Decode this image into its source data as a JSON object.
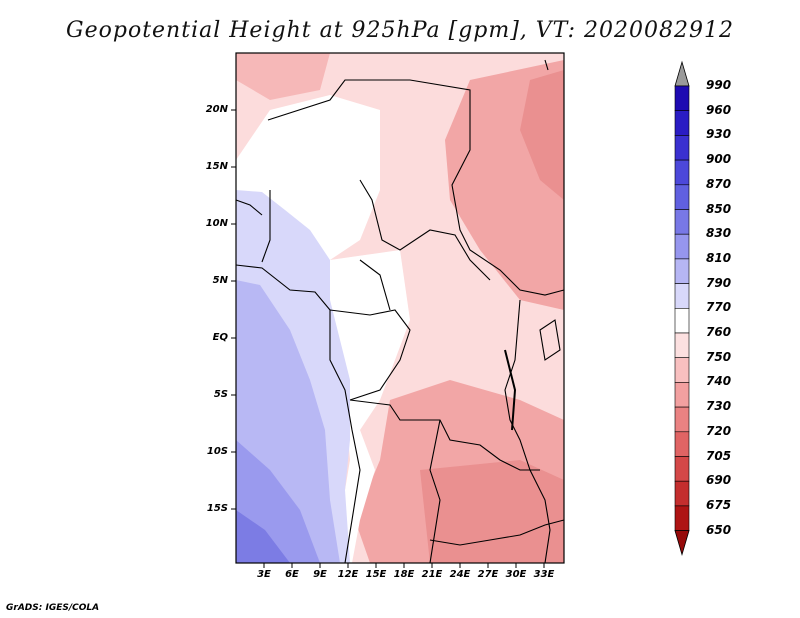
{
  "title": "Geopotential Height at 925hPa [gpm], VT: 2020082912",
  "footer": "GrADS: IGES/COLA",
  "map": {
    "lat_labels": [
      "20N",
      "15N",
      "10N",
      "5N",
      "EQ",
      "5S",
      "10S",
      "15S"
    ],
    "lon_labels": [
      "3E",
      "6E",
      "9E",
      "12E",
      "15E",
      "18E",
      "21E",
      "24E",
      "27E",
      "30E",
      "33E"
    ]
  },
  "colorbar": {
    "labels": [
      "990",
      "960",
      "930",
      "900",
      "870",
      "850",
      "830",
      "810",
      "790",
      "770",
      "760",
      "750",
      "740",
      "730",
      "720",
      "705",
      "690",
      "675",
      "650"
    ],
    "colors": [
      "#14009a",
      "#1e0ab2",
      "#2a1cc4",
      "#3a30d0",
      "#4c48da",
      "#6060e0",
      "#7878e6",
      "#9696ee",
      "#b6b6f4",
      "#d8d8fa",
      "#ffffff",
      "#fce0e0",
      "#f8c0c0",
      "#f2a0a0",
      "#ea8282",
      "#e06464",
      "#d44848",
      "#c42e2e",
      "#ae1414",
      "#960a0a"
    ]
  }
}
